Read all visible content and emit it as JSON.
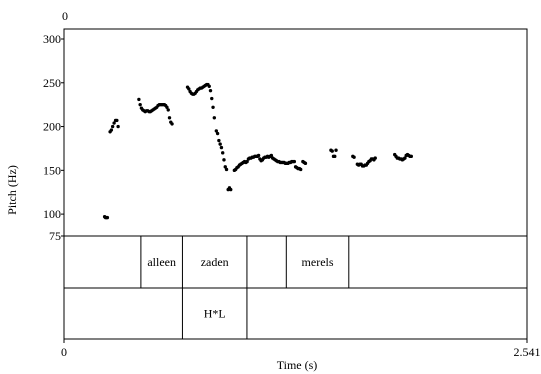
{
  "chart_data": {
    "type": "scatter",
    "xlabel": "Time (s)",
    "ylabel": "Pitch (Hz)",
    "xlim": [
      0,
      2.541
    ],
    "ylim": [
      75,
      300
    ],
    "x_tick_labels": [
      "0",
      "2.541"
    ],
    "y_ticks": [
      300,
      250,
      200,
      150,
      100,
      75
    ],
    "top_left_label": "0",
    "grid": false,
    "point_color": "#000000",
    "series": [
      {
        "values": [
          [
            0.223,
            97
          ],
          [
            0.228,
            96
          ],
          [
            0.233,
            96
          ],
          [
            0.238,
            96
          ],
          [
            0.253,
            194
          ],
          [
            0.26,
            196
          ],
          [
            0.267,
            200
          ],
          [
            0.275,
            204
          ],
          [
            0.283,
            207
          ],
          [
            0.29,
            207
          ],
          [
            0.297,
            200
          ],
          [
            0.411,
            231
          ],
          [
            0.418,
            225
          ],
          [
            0.425,
            221
          ],
          [
            0.432,
            219
          ],
          [
            0.439,
            218
          ],
          [
            0.446,
            217
          ],
          [
            0.453,
            218
          ],
          [
            0.46,
            218
          ],
          [
            0.467,
            217
          ],
          [
            0.474,
            217
          ],
          [
            0.481,
            218
          ],
          [
            0.488,
            219
          ],
          [
            0.495,
            220
          ],
          [
            0.502,
            221
          ],
          [
            0.509,
            222
          ],
          [
            0.516,
            224
          ],
          [
            0.523,
            225
          ],
          [
            0.53,
            225
          ],
          [
            0.537,
            225
          ],
          [
            0.544,
            225
          ],
          [
            0.551,
            225
          ],
          [
            0.558,
            224
          ],
          [
            0.565,
            222
          ],
          [
            0.572,
            219
          ],
          [
            0.579,
            210
          ],
          [
            0.586,
            205
          ],
          [
            0.593,
            203
          ],
          [
            0.678,
            245
          ],
          [
            0.685,
            243
          ],
          [
            0.692,
            240
          ],
          [
            0.699,
            238
          ],
          [
            0.706,
            237
          ],
          [
            0.713,
            237
          ],
          [
            0.72,
            238
          ],
          [
            0.727,
            240
          ],
          [
            0.734,
            242
          ],
          [
            0.741,
            243
          ],
          [
            0.748,
            244
          ],
          [
            0.755,
            244
          ],
          [
            0.762,
            245
          ],
          [
            0.769,
            246
          ],
          [
            0.776,
            247
          ],
          [
            0.783,
            248
          ],
          [
            0.79,
            248
          ],
          [
            0.797,
            246
          ],
          [
            0.804,
            241
          ],
          [
            0.811,
            232
          ],
          [
            0.818,
            222
          ],
          [
            0.825,
            210
          ],
          [
            0.836,
            195
          ],
          [
            0.843,
            192
          ],
          [
            0.85,
            184
          ],
          [
            0.857,
            180
          ],
          [
            0.864,
            176
          ],
          [
            0.871,
            170
          ],
          [
            0.878,
            162
          ],
          [
            0.885,
            154
          ],
          [
            0.892,
            151
          ],
          [
            0.901,
            128
          ],
          [
            0.908,
            130
          ],
          [
            0.915,
            128
          ],
          [
            0.935,
            150
          ],
          [
            0.942,
            151
          ],
          [
            0.949,
            153
          ],
          [
            0.956,
            154
          ],
          [
            0.963,
            156
          ],
          [
            0.97,
            157
          ],
          [
            0.977,
            158
          ],
          [
            0.984,
            159
          ],
          [
            0.991,
            160
          ],
          [
            0.998,
            159
          ],
          [
            1.005,
            160
          ],
          [
            1.012,
            163
          ],
          [
            1.019,
            164
          ],
          [
            1.026,
            164
          ],
          [
            1.033,
            165
          ],
          [
            1.04,
            165
          ],
          [
            1.047,
            166
          ],
          [
            1.054,
            166
          ],
          [
            1.061,
            166
          ],
          [
            1.068,
            167
          ],
          [
            1.075,
            163
          ],
          [
            1.082,
            161
          ],
          [
            1.089,
            162
          ],
          [
            1.096,
            164
          ],
          [
            1.103,
            165
          ],
          [
            1.11,
            165
          ],
          [
            1.117,
            166
          ],
          [
            1.124,
            165
          ],
          [
            1.131,
            166
          ],
          [
            1.138,
            167
          ],
          [
            1.145,
            164
          ],
          [
            1.152,
            163
          ],
          [
            1.159,
            162
          ],
          [
            1.166,
            161
          ],
          [
            1.173,
            160
          ],
          [
            1.18,
            160
          ],
          [
            1.187,
            159
          ],
          [
            1.194,
            159
          ],
          [
            1.201,
            159
          ],
          [
            1.208,
            159
          ],
          [
            1.215,
            158
          ],
          [
            1.222,
            158
          ],
          [
            1.229,
            158
          ],
          [
            1.236,
            159
          ],
          [
            1.243,
            159
          ],
          [
            1.25,
            160
          ],
          [
            1.257,
            160
          ],
          [
            1.264,
            160
          ],
          [
            1.271,
            154
          ],
          [
            1.278,
            153
          ],
          [
            1.285,
            152
          ],
          [
            1.292,
            152
          ],
          [
            1.299,
            151
          ],
          [
            1.311,
            160
          ],
          [
            1.318,
            159
          ],
          [
            1.325,
            158
          ],
          [
            1.465,
            173
          ],
          [
            1.472,
            172
          ],
          [
            1.479,
            166
          ],
          [
            1.486,
            166
          ],
          [
            1.493,
            173
          ],
          [
            1.585,
            166
          ],
          [
            1.592,
            165
          ],
          [
            1.61,
            157
          ],
          [
            1.617,
            156
          ],
          [
            1.624,
            157
          ],
          [
            1.631,
            157
          ],
          [
            1.638,
            155
          ],
          [
            1.645,
            155
          ],
          [
            1.652,
            156
          ],
          [
            1.659,
            156
          ],
          [
            1.666,
            158
          ],
          [
            1.673,
            160
          ],
          [
            1.68,
            161
          ],
          [
            1.687,
            163
          ],
          [
            1.694,
            163
          ],
          [
            1.701,
            162
          ],
          [
            1.708,
            164
          ],
          [
            1.815,
            168
          ],
          [
            1.822,
            166
          ],
          [
            1.829,
            164
          ],
          [
            1.836,
            164
          ],
          [
            1.843,
            163
          ],
          [
            1.85,
            163
          ],
          [
            1.857,
            162
          ],
          [
            1.864,
            163
          ],
          [
            1.871,
            164
          ],
          [
            1.878,
            167
          ],
          [
            1.885,
            168
          ],
          [
            1.892,
            167
          ],
          [
            1.899,
            166
          ],
          [
            1.906,
            166
          ]
        ]
      }
    ]
  },
  "tiers": [
    {
      "intervals": [
        {
          "start": 0.0,
          "end": 0.422,
          "label": ""
        },
        {
          "start": 0.422,
          "end": 0.65,
          "label": "alleen"
        },
        {
          "start": 0.65,
          "end": 1.004,
          "label": "zaden"
        },
        {
          "start": 1.004,
          "end": 1.22,
          "label": ""
        },
        {
          "start": 1.22,
          "end": 1.563,
          "label": "merels"
        },
        {
          "start": 1.563,
          "end": 2.541,
          "label": ""
        }
      ]
    },
    {
      "intervals": [
        {
          "start": 0.0,
          "end": 0.65,
          "label": ""
        },
        {
          "start": 0.65,
          "end": 1.004,
          "label": "H*L"
        },
        {
          "start": 1.004,
          "end": 2.541,
          "label": ""
        }
      ]
    }
  ]
}
